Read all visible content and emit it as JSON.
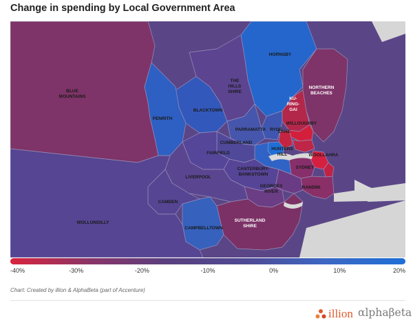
{
  "title": "Change in spending by Local Government Area",
  "scale": {
    "ticks": [
      "-40%",
      "-30%",
      "-20%",
      "-10%",
      "0%",
      "10%",
      "20%"
    ],
    "colors": [
      "#d9243d",
      "#8a3467",
      "#59407f",
      "#4f4a95",
      "#3b68c4",
      "#1f6fd6"
    ]
  },
  "credit": "Chart: Created by illion & AlphaBeta (part of Accenture)",
  "logos": {
    "illion": "illion",
    "alphabeta": "αlphaβeta"
  },
  "map": {
    "labels": {
      "blue_mountains": [
        "BLUE",
        "MOUNTAINS"
      ],
      "hornsby": "HORNSBY",
      "the_hills": [
        "THE",
        "HILLS",
        "SHIRE"
      ],
      "northern_beaches": [
        "NORTHERN",
        "BEACHES"
      ],
      "ku_ring_gai": [
        "KU-",
        "RING-",
        "GAI"
      ],
      "blacktown": "BLACKTOWN",
      "penrith": "PENRITH",
      "willoughby": "WILLOUGHBY",
      "lane": "LANE",
      "parramatta": "PARRAMATTA",
      "ryde": "RYDE",
      "cumberland": "CUMBERLAND",
      "fairfield": "FAIRFIELD",
      "hunters_hill": [
        "HUNTERS",
        "HILL"
      ],
      "woollahra": "WOOLLAHRA",
      "sydney": "SYDNEY",
      "canterbury": [
        "CANTERBURY-",
        "BANKSTOWN"
      ],
      "liverpool": "LIVERPOOL",
      "georges_river": [
        "GEORGES",
        "RIVER"
      ],
      "randwick": "RANDWI",
      "camden": "CAMDEN",
      "wollondilly": "WOLLONDILLY",
      "sutherland": [
        "SUTHERLAND",
        "SHIRE"
      ],
      "campbelltown": "CAMPBELLTOWN"
    }
  }
}
